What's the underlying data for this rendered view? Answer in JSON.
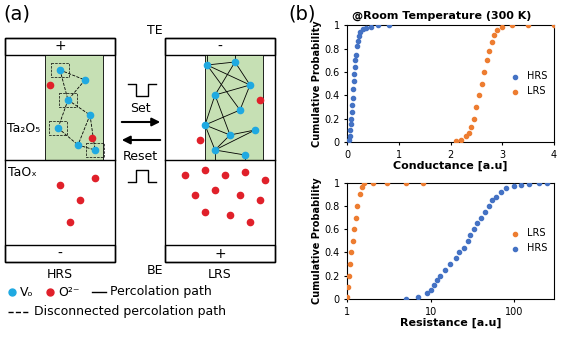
{
  "diagram": {
    "panel_labels": [
      "(a)",
      "(b)"
    ],
    "states": [
      {
        "name": "HRS",
        "top_sign": "+",
        "bottom_sign": "-"
      },
      {
        "name": "LRS",
        "top_sign": "-",
        "bottom_sign": "+"
      }
    ],
    "layers": {
      "oxide": "Ta₂O₅",
      "reservoir": "TaOₓ",
      "top_electrode": "TE",
      "bottom_electrode": "BE"
    },
    "operations": {
      "forward": "Set",
      "backward": "Reset"
    },
    "legend": {
      "vacancy": "Vₒ",
      "ion": "O²⁻",
      "path": "Percolation path",
      "broken_path": "Disconnected percolation path"
    }
  },
  "chart_data": [
    {
      "type": "scatter",
      "annotation": "@Room Temperature (300 K)",
      "x_label": "Conductance [a.u]",
      "y_label": "Cumulative Probability",
      "xlim": [
        0,
        4
      ],
      "xticks": [
        0,
        1,
        2,
        3,
        4
      ],
      "ylim": [
        0,
        1
      ],
      "yticks": [
        0,
        0.2,
        0.4,
        0.6,
        0.8,
        1
      ],
      "legend": "center right",
      "marker": "o",
      "series": [
        {
          "name": "HRS",
          "color": "#4472c4",
          "x": [
            0.02,
            0.04,
            0.05,
            0.06,
            0.07,
            0.08,
            0.09,
            0.1,
            0.11,
            0.12,
            0.13,
            0.14,
            0.15,
            0.16,
            0.18,
            0.2,
            0.22,
            0.25,
            0.3,
            0.35,
            0.45,
            0.6,
            0.8
          ],
          "values": [
            0.02,
            0.05,
            0.1,
            0.15,
            0.2,
            0.26,
            0.32,
            0.38,
            0.45,
            0.52,
            0.58,
            0.64,
            0.7,
            0.75,
            0.82,
            0.87,
            0.91,
            0.94,
            0.97,
            0.98,
            0.99,
            1,
            1
          ]
        },
        {
          "name": "LRS",
          "color": "#ed7d31",
          "x": [
            2.1,
            2.2,
            2.3,
            2.35,
            2.4,
            2.45,
            2.5,
            2.55,
            2.6,
            2.65,
            2.7,
            2.75,
            2.8,
            2.85,
            2.9,
            3.0,
            3.2,
            3.5,
            4.0
          ],
          "values": [
            0.01,
            0.02,
            0.05,
            0.08,
            0.13,
            0.2,
            0.3,
            0.4,
            0.5,
            0.6,
            0.7,
            0.78,
            0.86,
            0.92,
            0.96,
            0.99,
            1,
            1,
            1
          ]
        }
      ]
    },
    {
      "type": "scatter",
      "log": "x",
      "x_label": "Resistance [a.u]",
      "y_label": "Cumulative Probability",
      "xlim": [
        1,
        300
      ],
      "xticks": [
        1,
        10,
        100
      ],
      "ylim": [
        0,
        1
      ],
      "yticks": [
        0,
        0.2,
        0.4,
        0.6,
        0.8,
        1
      ],
      "legend": "center right",
      "marker": "o",
      "series": [
        {
          "name": "LRS",
          "color": "#ed7d31",
          "x": [
            1.0,
            1.02,
            1.05,
            1.08,
            1.1,
            1.15,
            1.2,
            1.25,
            1.3,
            1.4,
            1.5,
            1.6,
            2,
            3,
            5,
            8
          ],
          "values": [
            0.02,
            0.1,
            0.2,
            0.3,
            0.4,
            0.5,
            0.6,
            0.7,
            0.8,
            0.9,
            0.96,
            1,
            1,
            1,
            1,
            1
          ]
        },
        {
          "name": "HRS",
          "color": "#4472c4",
          "x": [
            5,
            7,
            9,
            10,
            11,
            12,
            13,
            15,
            17,
            20,
            22,
            25,
            28,
            30,
            33,
            36,
            40,
            45,
            50,
            55,
            60,
            70,
            80,
            100,
            120,
            150,
            200,
            250
          ],
          "values": [
            0,
            0.02,
            0.05,
            0.08,
            0.12,
            0.16,
            0.2,
            0.25,
            0.3,
            0.35,
            0.4,
            0.44,
            0.5,
            0.55,
            0.6,
            0.65,
            0.7,
            0.75,
            0.8,
            0.85,
            0.88,
            0.92,
            0.95,
            0.97,
            0.98,
            0.99,
            1,
            1
          ]
        }
      ]
    }
  ]
}
